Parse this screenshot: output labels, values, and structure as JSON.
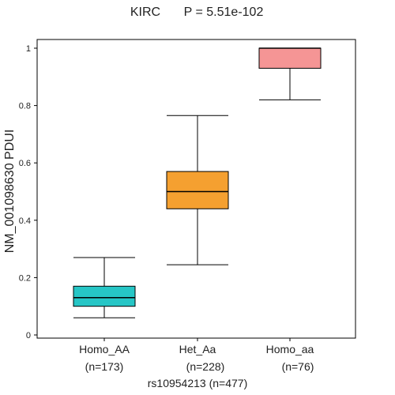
{
  "chart_data": {
    "type": "box",
    "title_left": "KIRC",
    "title_right": "P = 5.51e-102",
    "ylabel": "NM_001098630   PDUI",
    "xlabel": "rs10954213  (n=477)",
    "ylim": [
      0,
      1.0
    ],
    "yticks": [
      "0",
      "0.2",
      "0.4",
      "0.6",
      "0.8",
      "1"
    ],
    "grid": false,
    "groups": [
      {
        "name": "Homo_AA",
        "n_label": "(n=173)",
        "color": "#26c6c6",
        "whisker_low": 0.06,
        "q1": 0.1,
        "median": 0.13,
        "q3": 0.17,
        "whisker_high": 0.27
      },
      {
        "name": "Het_Aa",
        "n_label": "(n=228)",
        "color": "#f5a030",
        "whisker_low": 0.245,
        "q1": 0.44,
        "median": 0.5,
        "q3": 0.57,
        "whisker_high": 0.765
      },
      {
        "name": "Homo_aa",
        "n_label": "(n=76)",
        "color": "#f59595",
        "whisker_low": 0.82,
        "q1": 0.93,
        "median": 1.0,
        "q3": 1.0,
        "whisker_high": 1.0
      }
    ]
  }
}
